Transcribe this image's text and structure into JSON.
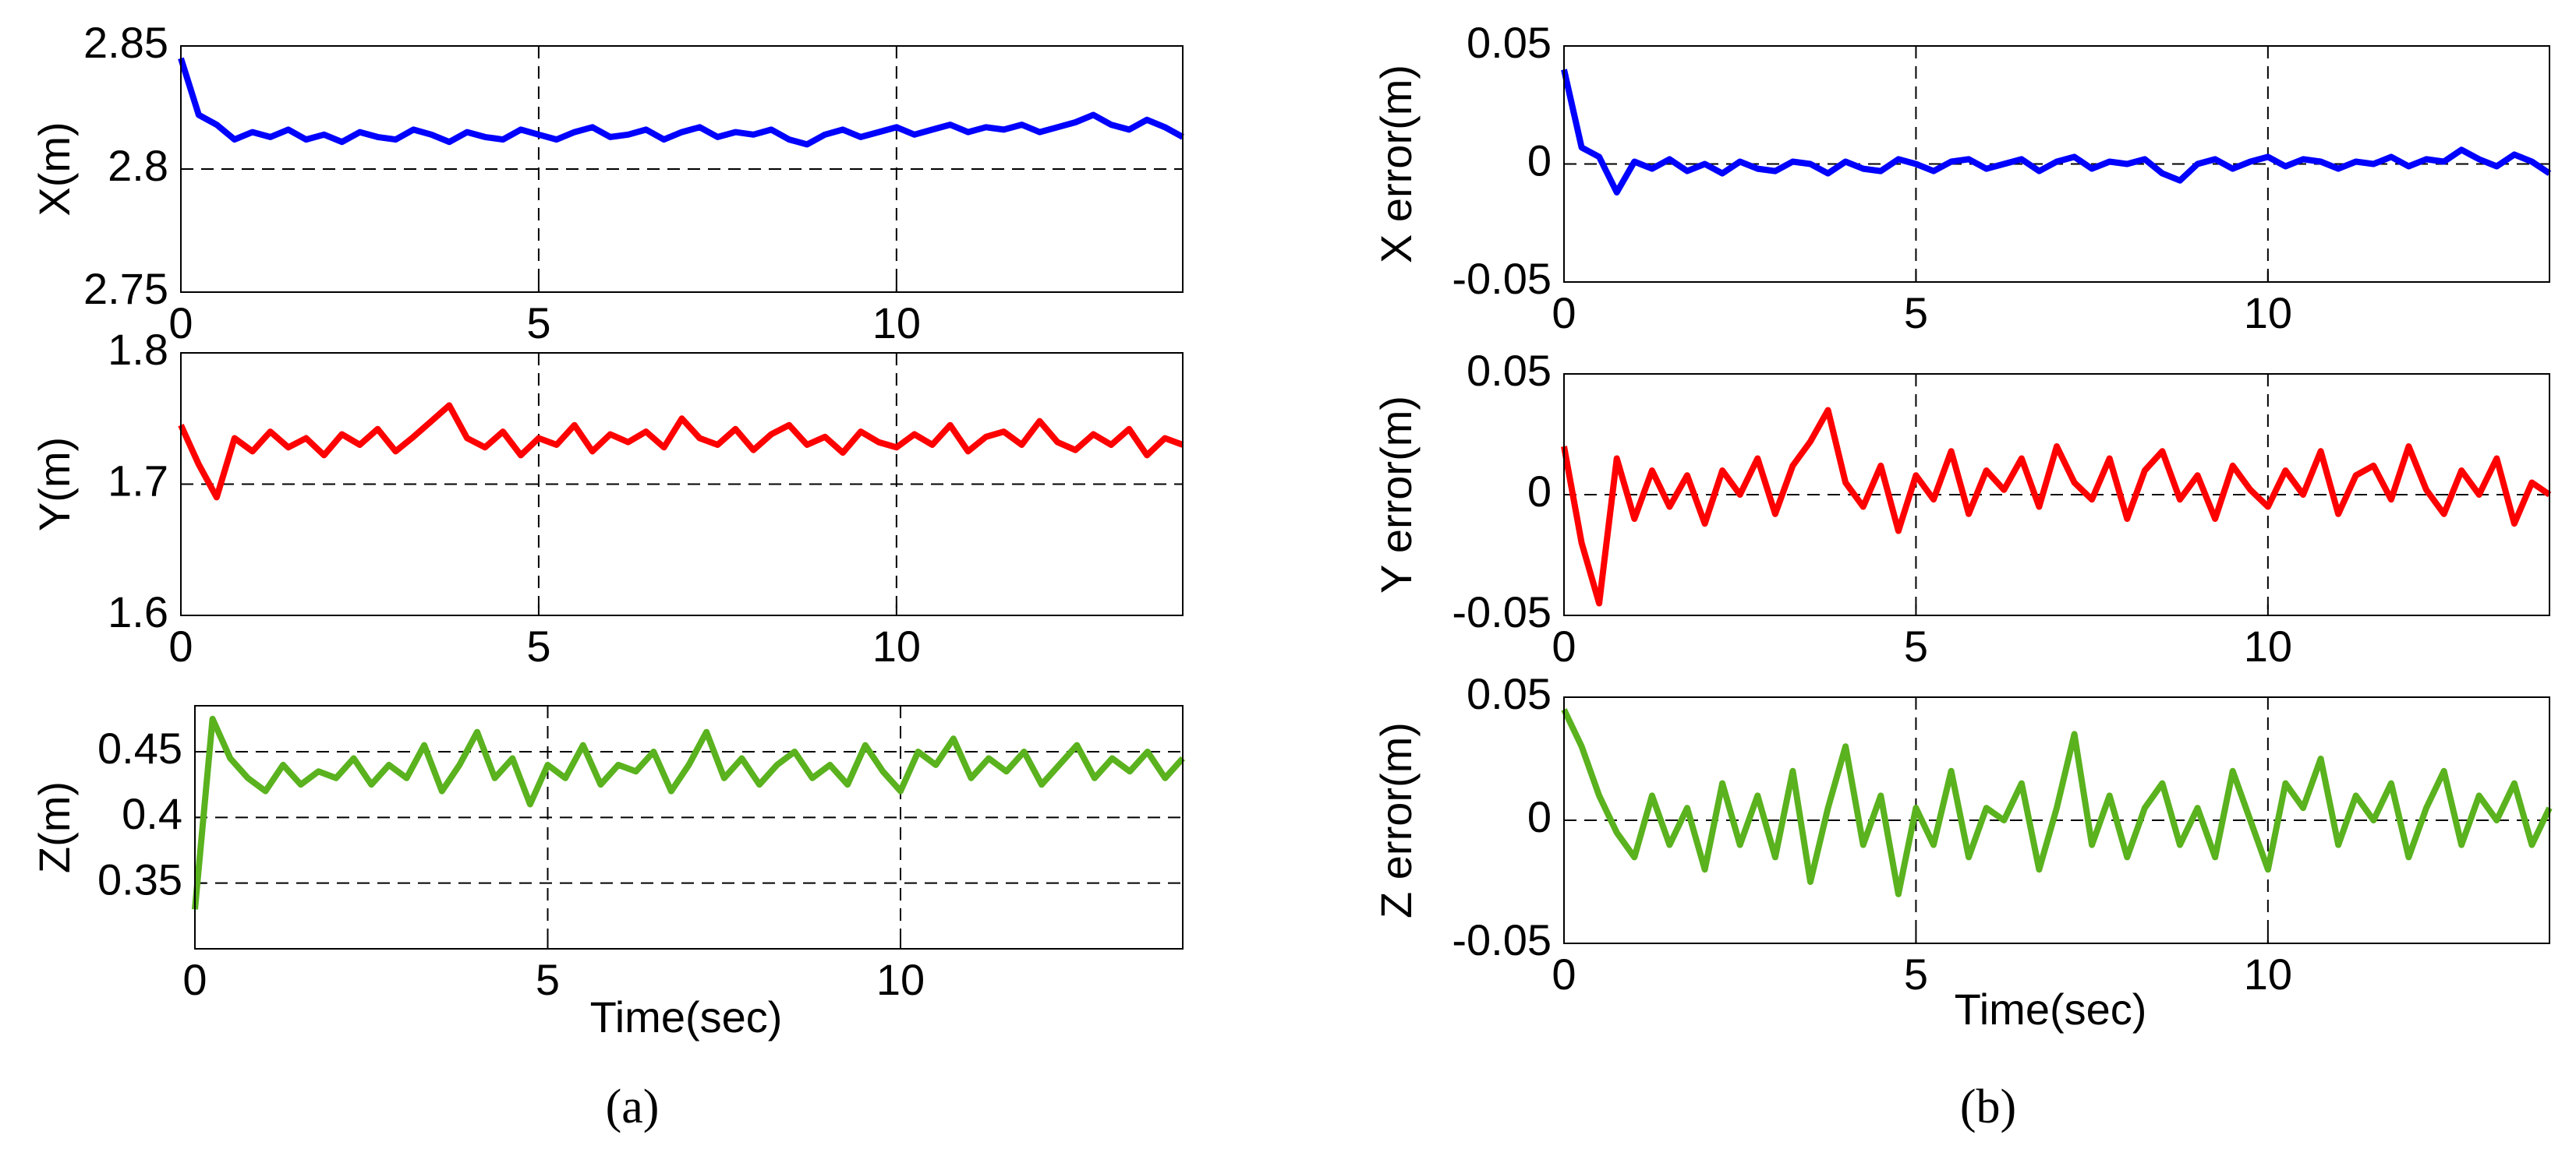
{
  "chart_data": [
    {
      "type": "line",
      "ylabel": "X(m)",
      "xlim": [
        0,
        14
      ],
      "xticks": [
        0,
        5,
        10
      ],
      "ylim": [
        2.75,
        2.85
      ],
      "yticks": [
        2.75,
        2.8,
        2.85
      ],
      "grid": true,
      "x": [
        0,
        0.25,
        0.5,
        0.75,
        1,
        1.25,
        1.5,
        1.75,
        2,
        2.25,
        2.5,
        2.75,
        3,
        3.25,
        3.5,
        3.75,
        4,
        4.25,
        4.5,
        4.75,
        5,
        5.25,
        5.5,
        5.75,
        6,
        6.25,
        6.5,
        6.75,
        7,
        7.25,
        7.5,
        7.75,
        8,
        8.25,
        8.5,
        8.75,
        9,
        9.25,
        9.5,
        9.75,
        10,
        10.25,
        10.5,
        10.75,
        11,
        11.25,
        11.5,
        11.75,
        12,
        12.25,
        12.5,
        12.75,
        13,
        13.25,
        13.5,
        13.75,
        14
      ],
      "series": [
        {
          "color": "#0000ff",
          "values": [
            2.845,
            2.822,
            2.818,
            2.812,
            2.815,
            2.813,
            2.816,
            2.812,
            2.814,
            2.811,
            2.815,
            2.813,
            2.812,
            2.816,
            2.814,
            2.811,
            2.815,
            2.813,
            2.812,
            2.816,
            2.814,
            2.812,
            2.815,
            2.817,
            2.813,
            2.814,
            2.816,
            2.812,
            2.815,
            2.817,
            2.813,
            2.815,
            2.814,
            2.816,
            2.812,
            2.81,
            2.814,
            2.816,
            2.813,
            2.815,
            2.817,
            2.814,
            2.816,
            2.818,
            2.815,
            2.817,
            2.816,
            2.818,
            2.815,
            2.817,
            2.819,
            2.822,
            2.818,
            2.816,
            2.82,
            2.817,
            2.813
          ]
        }
      ]
    },
    {
      "type": "line",
      "ylabel": "Y(m)",
      "xlim": [
        0,
        14
      ],
      "xticks": [
        0,
        5,
        10
      ],
      "ylim": [
        1.6,
        1.8
      ],
      "yticks": [
        1.6,
        1.7,
        1.8
      ],
      "grid": true,
      "x": [
        0,
        0.25,
        0.5,
        0.75,
        1,
        1.25,
        1.5,
        1.75,
        2,
        2.25,
        2.5,
        2.75,
        3,
        3.25,
        3.5,
        3.75,
        4,
        4.25,
        4.5,
        4.75,
        5,
        5.25,
        5.5,
        5.75,
        6,
        6.25,
        6.5,
        6.75,
        7,
        7.25,
        7.5,
        7.75,
        8,
        8.25,
        8.5,
        8.75,
        9,
        9.25,
        9.5,
        9.75,
        10,
        10.25,
        10.5,
        10.75,
        11,
        11.25,
        11.5,
        11.75,
        12,
        12.25,
        12.5,
        12.75,
        13,
        13.25,
        13.5,
        13.75,
        14
      ],
      "series": [
        {
          "color": "#ff0000",
          "values": [
            1.745,
            1.715,
            1.69,
            1.735,
            1.725,
            1.74,
            1.728,
            1.735,
            1.722,
            1.738,
            1.73,
            1.742,
            1.725,
            1.736,
            1.748,
            1.76,
            1.735,
            1.728,
            1.74,
            1.722,
            1.735,
            1.73,
            1.745,
            1.725,
            1.738,
            1.732,
            1.74,
            1.728,
            1.75,
            1.735,
            1.73,
            1.742,
            1.726,
            1.738,
            1.745,
            1.73,
            1.736,
            1.724,
            1.74,
            1.732,
            1.728,
            1.738,
            1.73,
            1.745,
            1.725,
            1.736,
            1.74,
            1.73,
            1.748,
            1.732,
            1.726,
            1.738,
            1.73,
            1.742,
            1.722,
            1.735,
            1.73
          ]
        }
      ]
    },
    {
      "type": "line",
      "ylabel": "Z(m)",
      "xlabel": "Time(sec)",
      "xlim": [
        0,
        14
      ],
      "xticks": [
        0,
        5,
        10
      ],
      "ylim": [
        0.3,
        0.485
      ],
      "yticks": [
        0.35,
        0.4,
        0.45
      ],
      "grid": true,
      "x": [
        0,
        0.25,
        0.5,
        0.75,
        1,
        1.25,
        1.5,
        1.75,
        2,
        2.25,
        2.5,
        2.75,
        3,
        3.25,
        3.5,
        3.75,
        4,
        4.25,
        4.5,
        4.75,
        5,
        5.25,
        5.5,
        5.75,
        6,
        6.25,
        6.5,
        6.75,
        7,
        7.25,
        7.5,
        7.75,
        8,
        8.25,
        8.5,
        8.75,
        9,
        9.25,
        9.5,
        9.75,
        10,
        10.25,
        10.5,
        10.75,
        11,
        11.25,
        11.5,
        11.75,
        12,
        12.25,
        12.5,
        12.75,
        13,
        13.25,
        13.5,
        13.75,
        14
      ],
      "series": [
        {
          "color": "#5ab21e",
          "values": [
            0.33,
            0.475,
            0.445,
            0.43,
            0.42,
            0.44,
            0.425,
            0.435,
            0.43,
            0.445,
            0.425,
            0.44,
            0.43,
            0.455,
            0.42,
            0.44,
            0.465,
            0.43,
            0.445,
            0.41,
            0.44,
            0.43,
            0.455,
            0.425,
            0.44,
            0.435,
            0.45,
            0.42,
            0.44,
            0.465,
            0.43,
            0.445,
            0.425,
            0.44,
            0.45,
            0.43,
            0.44,
            0.425,
            0.455,
            0.435,
            0.42,
            0.45,
            0.44,
            0.46,
            0.43,
            0.445,
            0.435,
            0.45,
            0.425,
            0.44,
            0.455,
            0.43,
            0.445,
            0.435,
            0.45,
            0.43,
            0.445
          ]
        }
      ]
    },
    {
      "type": "line",
      "ylabel": "X error(m)",
      "xlim": [
        0,
        14
      ],
      "xticks": [
        0,
        5,
        10
      ],
      "ylim": [
        -0.05,
        0.05
      ],
      "yticks": [
        -0.05,
        0,
        0.05
      ],
      "grid": true,
      "x": [
        0,
        0.25,
        0.5,
        0.75,
        1,
        1.25,
        1.5,
        1.75,
        2,
        2.25,
        2.5,
        2.75,
        3,
        3.25,
        3.5,
        3.75,
        4,
        4.25,
        4.5,
        4.75,
        5,
        5.25,
        5.5,
        5.75,
        6,
        6.25,
        6.5,
        6.75,
        7,
        7.25,
        7.5,
        7.75,
        8,
        8.25,
        8.5,
        8.75,
        9,
        9.25,
        9.5,
        9.75,
        10,
        10.25,
        10.5,
        10.75,
        11,
        11.25,
        11.5,
        11.75,
        12,
        12.25,
        12.5,
        12.75,
        13,
        13.25,
        13.5,
        13.75,
        14
      ],
      "series": [
        {
          "color": "#0000ff",
          "values": [
            0.04,
            0.007,
            0.003,
            -0.012,
            0.001,
            -0.002,
            0.002,
            -0.003,
            0,
            -0.004,
            0.001,
            -0.002,
            -0.003,
            0.001,
            0,
            -0.004,
            0.001,
            -0.002,
            -0.003,
            0.002,
            0,
            -0.003,
            0.001,
            0.002,
            -0.002,
            0,
            0.002,
            -0.003,
            0.001,
            0.003,
            -0.002,
            0.001,
            0,
            0.002,
            -0.004,
            -0.007,
            0,
            0.002,
            -0.002,
            0.001,
            0.003,
            -0.001,
            0.002,
            0.001,
            -0.002,
            0.001,
            0,
            0.003,
            -0.001,
            0.002,
            0.001,
            0.006,
            0.002,
            -0.001,
            0.004,
            0.001,
            -0.004
          ]
        }
      ]
    },
    {
      "type": "line",
      "ylabel": "Y error(m)",
      "xlim": [
        0,
        14
      ],
      "xticks": [
        0,
        5,
        10
      ],
      "ylim": [
        -0.05,
        0.05
      ],
      "yticks": [
        -0.05,
        0,
        0.05
      ],
      "grid": true,
      "x": [
        0,
        0.25,
        0.5,
        0.75,
        1,
        1.25,
        1.5,
        1.75,
        2,
        2.25,
        2.5,
        2.75,
        3,
        3.25,
        3.5,
        3.75,
        4,
        4.25,
        4.5,
        4.75,
        5,
        5.25,
        5.5,
        5.75,
        6,
        6.25,
        6.5,
        6.75,
        7,
        7.25,
        7.5,
        7.75,
        8,
        8.25,
        8.5,
        8.75,
        9,
        9.25,
        9.5,
        9.75,
        10,
        10.25,
        10.5,
        10.75,
        11,
        11.25,
        11.5,
        11.75,
        12,
        12.25,
        12.5,
        12.75,
        13,
        13.25,
        13.5,
        13.75,
        14
      ],
      "series": [
        {
          "color": "#ff0000",
          "values": [
            0.02,
            -0.02,
            -0.045,
            0.015,
            -0.01,
            0.01,
            -0.005,
            0.008,
            -0.012,
            0.01,
            0,
            0.015,
            -0.008,
            0.012,
            0.022,
            0.035,
            0.005,
            -0.005,
            0.012,
            -0.015,
            0.008,
            -0.002,
            0.018,
            -0.008,
            0.01,
            0.002,
            0.015,
            -0.005,
            0.02,
            0.005,
            -0.002,
            0.015,
            -0.01,
            0.01,
            0.018,
            -0.002,
            0.008,
            -0.01,
            0.012,
            0.002,
            -0.005,
            0.01,
            0,
            0.018,
            -0.008,
            0.008,
            0.012,
            -0.002,
            0.02,
            0.002,
            -0.008,
            0.01,
            0,
            0.015,
            -0.012,
            0.005,
            0
          ]
        }
      ]
    },
    {
      "type": "line",
      "ylabel": "Z error(m)",
      "xlabel": "Time(sec)",
      "xlim": [
        0,
        14
      ],
      "xticks": [
        0,
        5,
        10
      ],
      "ylim": [
        -0.05,
        0.05
      ],
      "yticks": [
        -0.05,
        0,
        0.05
      ],
      "grid": true,
      "x": [
        0,
        0.25,
        0.5,
        0.75,
        1,
        1.25,
        1.5,
        1.75,
        2,
        2.25,
        2.5,
        2.75,
        3,
        3.25,
        3.5,
        3.75,
        4,
        4.25,
        4.5,
        4.75,
        5,
        5.25,
        5.5,
        5.75,
        6,
        6.25,
        6.5,
        6.75,
        7,
        7.25,
        7.5,
        7.75,
        8,
        8.25,
        8.5,
        8.75,
        9,
        9.25,
        9.5,
        9.75,
        10,
        10.25,
        10.5,
        10.75,
        11,
        11.25,
        11.5,
        11.75,
        12,
        12.25,
        12.5,
        12.75,
        13,
        13.25,
        13.5,
        13.75,
        14
      ],
      "series": [
        {
          "color": "#5ab21e",
          "values": [
            0.045,
            0.03,
            0.01,
            -0.005,
            -0.015,
            0.01,
            -0.01,
            0.005,
            -0.02,
            0.015,
            -0.01,
            0.01,
            -0.015,
            0.02,
            -0.025,
            0.005,
            0.03,
            -0.01,
            0.01,
            -0.03,
            0.005,
            -0.01,
            0.02,
            -0.015,
            0.005,
            0,
            0.015,
            -0.02,
            0.005,
            0.035,
            -0.01,
            0.01,
            -0.015,
            0.005,
            0.015,
            -0.01,
            0.005,
            -0.015,
            0.02,
            0,
            -0.02,
            0.015,
            0.005,
            0.025,
            -0.01,
            0.01,
            0,
            0.015,
            -0.015,
            0.005,
            0.02,
            -0.01,
            0.01,
            0,
            0.015,
            -0.01,
            0.005
          ]
        }
      ]
    }
  ],
  "captions": [
    "(a)",
    "(b)"
  ]
}
